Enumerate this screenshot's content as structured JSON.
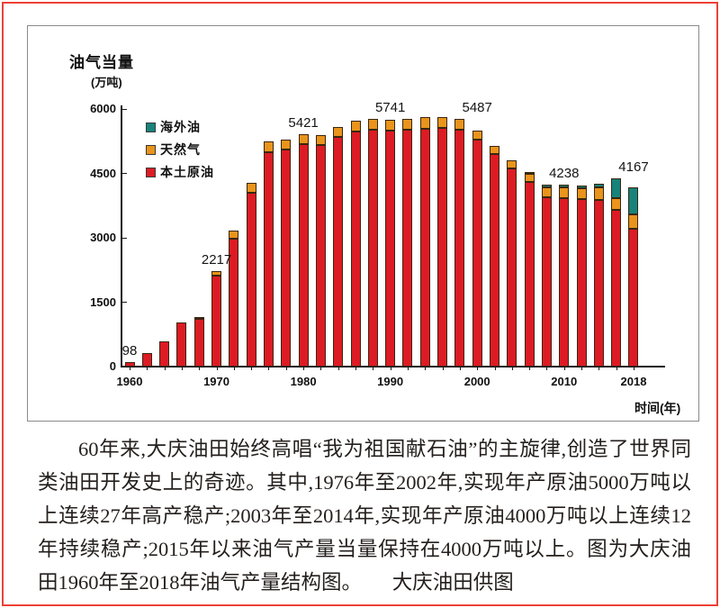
{
  "chart": {
    "title": "油气当量",
    "unit_label": "(万吨)",
    "xaxis_title": "时间(年)"
  },
  "chart_data": {
    "type": "bar",
    "stacked": true,
    "title": "油气当量(万吨)",
    "xlabel": "时间(年)",
    "ylabel": "油气当量(万吨)",
    "ylim": [
      0,
      6000
    ],
    "yticks": [
      0,
      1500,
      3000,
      4500,
      6000
    ],
    "xtick_years": [
      1960,
      1970,
      1980,
      1990,
      2000,
      2010,
      2018
    ],
    "grid": false,
    "legend_position": "upper-left",
    "categories": [
      1960,
      1962,
      1964,
      1966,
      1968,
      1970,
      1972,
      1974,
      1976,
      1978,
      1980,
      1982,
      1984,
      1986,
      1988,
      1990,
      1992,
      1994,
      1996,
      1998,
      2000,
      2002,
      2004,
      2006,
      2008,
      2010,
      2012,
      2014,
      2016,
      2018
    ],
    "series": [
      {
        "name": "本土原油",
        "color": "#dd1b24",
        "values": [
          98,
          310,
          590,
          1035,
          1105,
          2117,
          2985,
          4040,
          5000,
          5050,
          5183,
          5160,
          5345,
          5480,
          5520,
          5491,
          5510,
          5548,
          5558,
          5508,
          5280,
          4948,
          4618,
          4310,
          3950,
          3930,
          3908,
          3878,
          3650,
          3200
        ]
      },
      {
        "name": "天然气",
        "color": "#e9941c",
        "values": [
          0,
          0,
          0,
          0,
          30,
          100,
          190,
          230,
          235,
          238,
          238,
          240,
          240,
          245,
          250,
          250,
          250,
          255,
          255,
          252,
          207,
          202,
          182,
          170,
          215,
          250,
          245,
          290,
          270,
          340
        ]
      },
      {
        "name": "海外油",
        "color": "#17837b",
        "values": [
          0,
          0,
          0,
          0,
          0,
          0,
          0,
          0,
          0,
          0,
          0,
          0,
          0,
          0,
          0,
          0,
          0,
          0,
          0,
          0,
          0,
          0,
          0,
          50,
          70,
          58,
          57,
          87,
          460,
          627
        ]
      }
    ],
    "point_labels": [
      {
        "year": 1960,
        "text": "98"
      },
      {
        "year": 1970,
        "text": "2217"
      },
      {
        "year": 1980,
        "text": "5421"
      },
      {
        "year": 1990,
        "text": "5741"
      },
      {
        "year": 2000,
        "text": "5487"
      },
      {
        "year": 2010,
        "text": "4238"
      },
      {
        "year": 2018,
        "text": "4167"
      }
    ],
    "legend_order_top_to_bottom": [
      "海外油",
      "天然气",
      "本土原油"
    ]
  },
  "caption": {
    "text": "60年来,大庆油田始终高唱“我为祖国献石油”的主旋律,创造了世界同类油田开发史上的奇迹。其中,1976年至2002年,实现年产原油5000万吨以上连续27年高产稳产;2003年至2014年,实现年产原油4000万吨以上连续12年持续稳产;2015年以来油气产量当量保持在4000万吨以上。图为大庆油田1960年至2018年油气产量结构图。",
    "separator": "　　",
    "credit": "大庆油田供图"
  }
}
